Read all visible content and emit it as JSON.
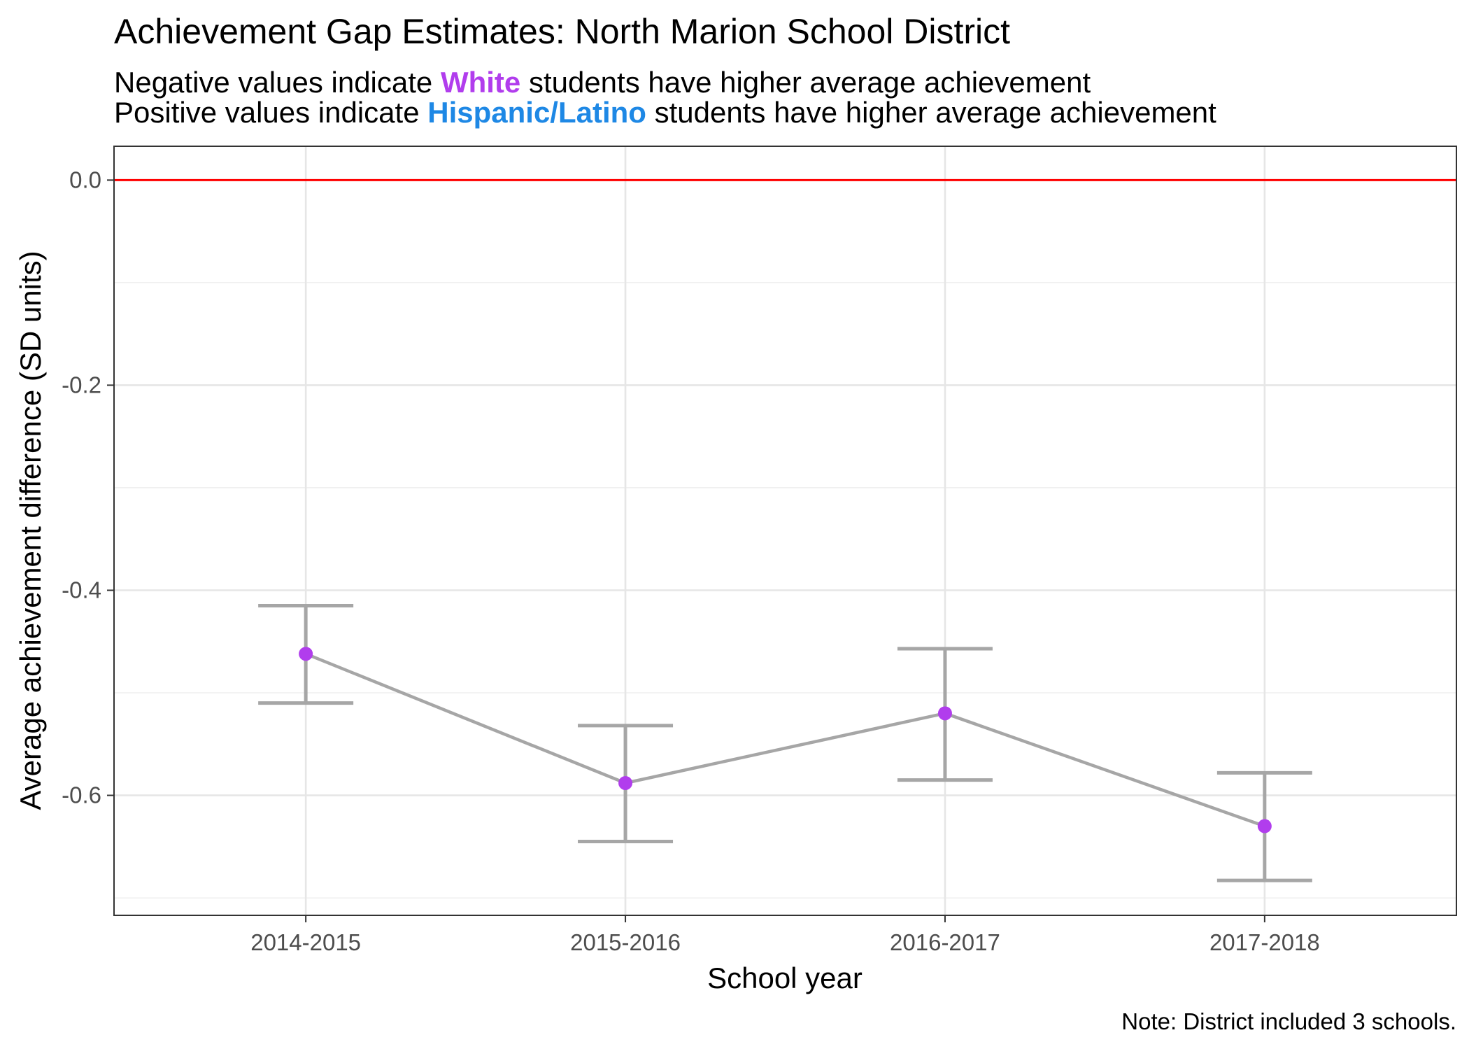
{
  "chart_data": {
    "type": "line",
    "title": "Achievement Gap Estimates: North Marion School District",
    "subtitle": {
      "line1": {
        "prefix": "Negative values indicate",
        "highlight": "White",
        "suffix": "students have higher average achievement",
        "highlight_color": "#b13ded"
      },
      "line2": {
        "prefix": "Positive values indicate",
        "highlight": "Hispanic/Latino",
        "suffix": "students have higher average achievement",
        "highlight_color": "#1e88e5"
      }
    },
    "xlabel": "School year",
    "ylabel": "Average achievement difference (SD units)",
    "caption": "Note: District included 3 schools.",
    "categories": [
      "2014-2015",
      "2015-2016",
      "2016-2017",
      "2017-2018"
    ],
    "series": [
      {
        "values": [
          -0.462,
          -0.588,
          -0.52,
          -0.63
        ],
        "lower": [
          -0.51,
          -0.645,
          -0.585,
          -0.683
        ],
        "upper": [
          -0.415,
          -0.532,
          -0.457,
          -0.578
        ],
        "point_color": "#b13ded",
        "line_color": "#a6a6a6"
      }
    ],
    "ylim": [
      -0.717,
      0.033
    ],
    "yticks": [
      0.0,
      -0.2,
      -0.4,
      -0.6
    ],
    "ytick_labels": [
      "0.0",
      "-0.2",
      "-0.4",
      "-0.6"
    ],
    "reference_line": {
      "y": 0,
      "color": "#ff0000"
    },
    "grid": true
  }
}
